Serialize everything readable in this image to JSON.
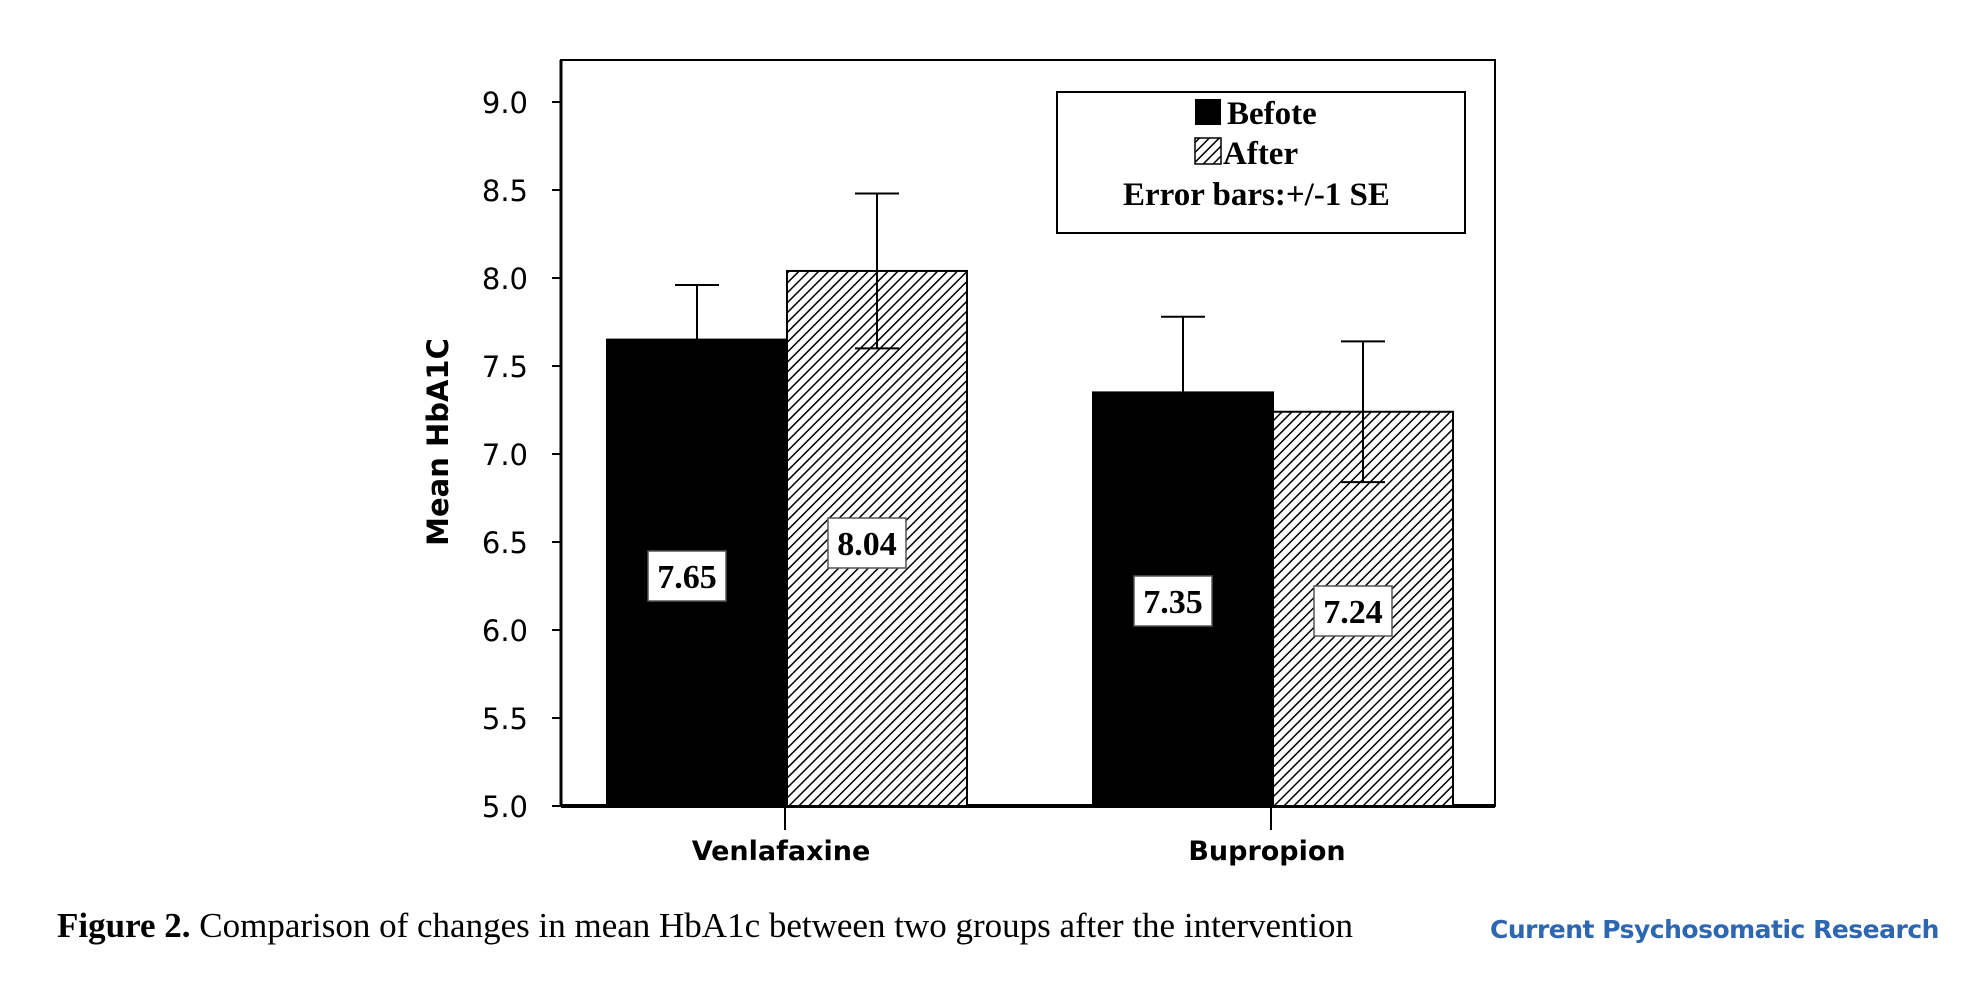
{
  "chart_data": {
    "type": "bar",
    "ylabel": "Mean HbA1C",
    "ylim": [
      5.0,
      9.2
    ],
    "yticks": [
      "5.0",
      "5.5",
      "6.0",
      "6.5",
      "7.0",
      "7.5",
      "8.0",
      "8.5",
      "9.0"
    ],
    "categories": [
      "Venlafaxine",
      "Bupropion"
    ],
    "series": [
      {
        "name": "Befote",
        "values": [
          7.65,
          7.35
        ],
        "labels": [
          "7.65",
          "7.35"
        ],
        "error_upper": [
          7.96,
          7.78
        ],
        "error_lower": [
          7.65,
          7.35
        ],
        "fill": "solid"
      },
      {
        "name": "After",
        "values": [
          8.04,
          7.24
        ],
        "labels": [
          "8.04",
          "7.24"
        ],
        "error_upper": [
          8.48,
          7.64
        ],
        "error_lower": [
          7.6,
          6.84
        ],
        "fill": "hatched"
      }
    ],
    "legend": {
      "position": "top-right",
      "items": [
        "Befote",
        "After"
      ],
      "note": "Error bars:+/-1 SE"
    },
    "grid": false
  },
  "caption": {
    "label": "Figure 2.",
    "text": " Comparison of changes in mean HbA1c between two groups after the intervention"
  },
  "journal": {
    "name": "Current Psychosomatic Research"
  },
  "colors": {
    "before_fill": "#000000",
    "after_hatch": "#000000",
    "axis": "#000000",
    "journal_text": "#2E67B1"
  }
}
